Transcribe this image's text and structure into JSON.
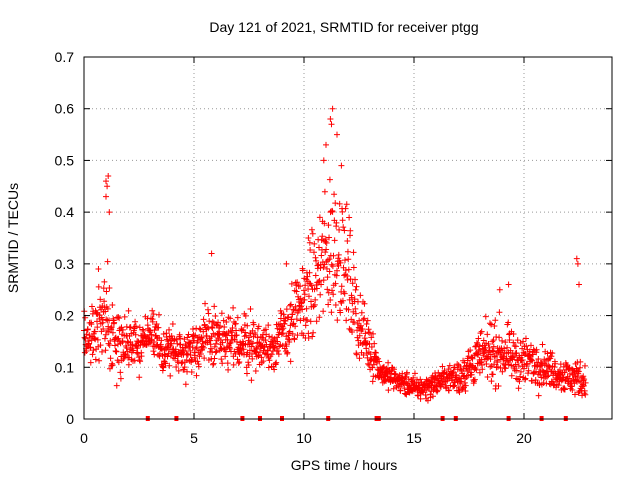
{
  "chart_data": {
    "type": "scatter",
    "title": "Day 121 of 2021, SRMTID for receiver ptgg",
    "xlabel": "GPS time / hours",
    "ylabel": "SRMTID / TECUs",
    "xlim": [
      0,
      24
    ],
    "ylim": [
      0,
      0.7
    ],
    "xticks": [
      0,
      5,
      10,
      15,
      20
    ],
    "xtick_labels": [
      "0",
      "5",
      "10",
      "15",
      "20"
    ],
    "yticks": [
      0,
      0.1,
      0.2,
      0.3,
      0.4,
      0.5,
      0.6,
      0.7
    ],
    "ytick_labels": [
      "0",
      "0.1",
      "0.2",
      "0.3",
      "0.4",
      "0.5",
      "0.6",
      "0.7"
    ],
    "grid": true,
    "marker": "+",
    "color": "#ff0000",
    "trend": {
      "x": [
        0,
        0.5,
        1,
        1.5,
        2,
        2.5,
        3,
        3.5,
        4,
        4.5,
        5,
        5.5,
        6,
        6.5,
        7,
        7.5,
        8,
        8.5,
        9,
        9.5,
        10,
        10.5,
        11,
        11.5,
        12,
        12.5,
        13,
        13.5,
        14,
        14.5,
        15,
        15.5,
        16,
        16.5,
        17,
        17.5,
        18,
        18.5,
        19,
        19.5,
        20,
        20.5,
        21,
        21.5,
        22,
        22.5,
        22.8
      ],
      "y": [
        0.16,
        0.18,
        0.2,
        0.14,
        0.15,
        0.14,
        0.17,
        0.13,
        0.14,
        0.13,
        0.14,
        0.15,
        0.16,
        0.14,
        0.15,
        0.15,
        0.14,
        0.14,
        0.16,
        0.19,
        0.23,
        0.26,
        0.32,
        0.34,
        0.28,
        0.18,
        0.14,
        0.09,
        0.08,
        0.07,
        0.06,
        0.06,
        0.07,
        0.08,
        0.08,
        0.1,
        0.12,
        0.13,
        0.13,
        0.12,
        0.11,
        0.11,
        0.1,
        0.09,
        0.08,
        0.08,
        0.07
      ],
      "spread": [
        0.05,
        0.07,
        0.09,
        0.06,
        0.05,
        0.04,
        0.05,
        0.04,
        0.04,
        0.04,
        0.04,
        0.05,
        0.06,
        0.05,
        0.05,
        0.05,
        0.04,
        0.04,
        0.05,
        0.06,
        0.07,
        0.09,
        0.12,
        0.13,
        0.1,
        0.06,
        0.05,
        0.02,
        0.02,
        0.02,
        0.02,
        0.02,
        0.02,
        0.02,
        0.03,
        0.04,
        0.04,
        0.05,
        0.05,
        0.04,
        0.04,
        0.04,
        0.03,
        0.03,
        0.03,
        0.03,
        0.03
      ]
    },
    "outliers": [
      {
        "x": 1.0,
        "y": 0.46
      },
      {
        "x": 1.05,
        "y": 0.45
      },
      {
        "x": 1.1,
        "y": 0.47
      },
      {
        "x": 1.0,
        "y": 0.43
      },
      {
        "x": 1.15,
        "y": 0.4
      },
      {
        "x": 5.8,
        "y": 0.32
      },
      {
        "x": 9.2,
        "y": 0.3
      },
      {
        "x": 10.2,
        "y": 0.35
      },
      {
        "x": 11.2,
        "y": 0.58
      },
      {
        "x": 11.3,
        "y": 0.6
      },
      {
        "x": 11.25,
        "y": 0.57
      },
      {
        "x": 11.0,
        "y": 0.53
      },
      {
        "x": 10.9,
        "y": 0.5
      },
      {
        "x": 11.5,
        "y": 0.55
      },
      {
        "x": 11.7,
        "y": 0.49
      },
      {
        "x": 22.4,
        "y": 0.31
      },
      {
        "x": 22.45,
        "y": 0.3
      },
      {
        "x": 22.5,
        "y": 0.26
      },
      {
        "x": 18.9,
        "y": 0.25
      },
      {
        "x": 19.3,
        "y": 0.26
      }
    ],
    "baseline_markers_x": [
      2.9,
      4.2,
      7.2,
      8.0,
      9.0,
      11.1,
      13.3,
      13.4,
      16.3,
      16.9,
      19.3,
      20.8,
      21.9
    ]
  }
}
